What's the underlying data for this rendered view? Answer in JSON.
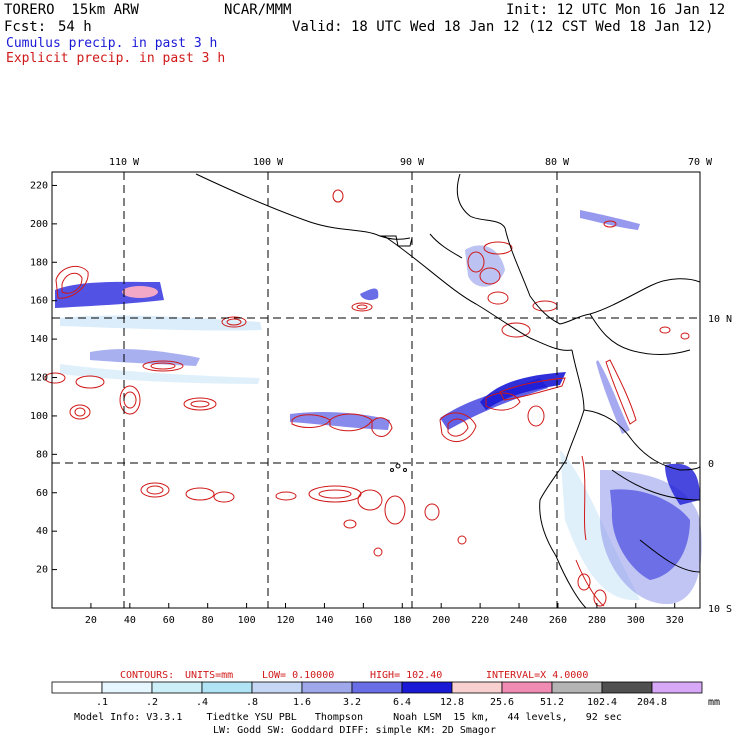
{
  "header": {
    "model_name": "TORERO  15km ARW",
    "institution": "NCAR/MMM",
    "init": "Init: 12 UTC Mon 16 Jan 12",
    "fcst_label": "Fcst:",
    "fcst_hours": "54 h",
    "valid": "Valid: 18 UTC Wed 18 Jan 12 (12 CST Wed 18 Jan 12)",
    "legend_cumulus": "Cumulus precip. in past 3 h",
    "legend_explicit": "Explicit precip. in past 3 h"
  },
  "map": {
    "top_lon_labels": [
      "110 W",
      "100 W",
      "90 W",
      "80 W",
      "70 W"
    ],
    "right_lat_labels": [
      "10 N",
      "0",
      "10 S"
    ],
    "left_y_ticks": [
      "220",
      "200",
      "180",
      "160",
      "140",
      "120",
      "100",
      "80",
      "60",
      "40",
      "20"
    ],
    "bottom_x_ticks": [
      "20",
      "40",
      "60",
      "80",
      "100",
      "120",
      "140",
      "160",
      "180",
      "200",
      "220",
      "240",
      "260",
      "280",
      "300",
      "320"
    ],
    "x_range": [
      0,
      333
    ],
    "y_range": [
      0,
      227
    ]
  },
  "contour_info": {
    "contours": "CONTOURS:",
    "units": "UNITS=mm",
    "low": "LOW= 0.10000",
    "high": "HIGH=  102.40",
    "interval": "INTERVAL=X  4.0000"
  },
  "colorbar": {
    "labels": [
      ".1",
      ".2",
      ".4",
      ".8",
      "1.6",
      "3.2",
      "6.4",
      "12.8",
      "25.6",
      "51.2",
      "102.4",
      "204.8"
    ],
    "colors": [
      "#ffffff",
      "#e6f7ff",
      "#cdeff8",
      "#b0e4f4",
      "#c6d6f5",
      "#a0a8ec",
      "#6a6ee6",
      "#1a1ad6",
      "#f8d0d0",
      "#f08cb4",
      "#b4b4b4",
      "#505050",
      "#d8a8f8"
    ],
    "unit": "mm"
  },
  "footer": {
    "line1": "Model Info: V3.3.1    Tiedtke YSU PBL   Thompson     Noah LSM  15 km,   44 levels,   92 sec",
    "line2": "LW: Godd SW: Goddard DIFF: simple KM: 2D Smagor"
  }
}
